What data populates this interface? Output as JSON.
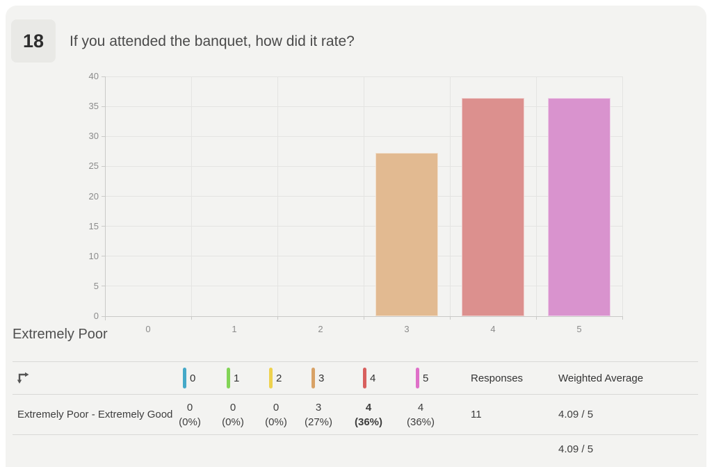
{
  "header": {
    "question_number": "18",
    "title": "If you attended the banquet, how did it rate?"
  },
  "chart_data": {
    "type": "bar",
    "categories": [
      "0",
      "1",
      "2",
      "3",
      "4",
      "5"
    ],
    "values": [
      0,
      0,
      0,
      27.27,
      36.36,
      36.36
    ],
    "bar_colors": [
      "#6fc6e0",
      "#a5e080",
      "#f4e27e",
      "#e2ba91",
      "#dc908e",
      "#d993ce"
    ],
    "title": "",
    "xlabel": "",
    "ylabel": "",
    "ylim": [
      0,
      40
    ],
    "ytick_step": 5,
    "grid": true,
    "legend_position": "none"
  },
  "scale_heading": "Extremely Poor",
  "table": {
    "ratings": [
      {
        "label": "0",
        "color": "#45a9c8",
        "count": "0",
        "pct": "(0%)",
        "bold": false
      },
      {
        "label": "1",
        "color": "#82d456",
        "count": "0",
        "pct": "(0%)",
        "bold": false
      },
      {
        "label": "2",
        "color": "#eed24e",
        "count": "0",
        "pct": "(0%)",
        "bold": false
      },
      {
        "label": "3",
        "color": "#d8a266",
        "count": "3",
        "pct": "(27%)",
        "bold": false
      },
      {
        "label": "4",
        "color": "#d8605e",
        "count": "4",
        "pct": "(36%)",
        "bold": true
      },
      {
        "label": "5",
        "color": "#df70c8",
        "count": "4",
        "pct": "(36%)",
        "bold": false
      }
    ],
    "responses_header": "Responses",
    "weighted_average_header": "Weighted Average",
    "row_label": "Extremely Poor - Extremely Good",
    "responses_value": "11",
    "weighted_average_value": "4.09 / 5",
    "total_weighted_average": "4.09 / 5"
  }
}
